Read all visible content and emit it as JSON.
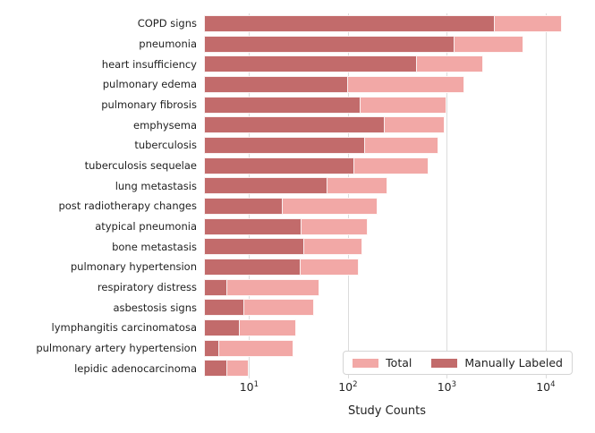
{
  "chart_data": {
    "type": "bar",
    "orientation": "horizontal",
    "xscale": "log",
    "xlabel": "Study Counts",
    "xlim": [
      3.5,
      17600
    ],
    "xticks": [
      10,
      100,
      1000,
      10000
    ],
    "grid": "vertical",
    "legend_position": "lower right",
    "categories": [
      "COPD signs",
      "pneumonia",
      "heart insufficiency",
      "pulmonary edema",
      "pulmonary fibrosis",
      "emphysema",
      "tuberculosis",
      "tuberculosis sequelae",
      "lung metastasis",
      "post radiotherapy changes",
      "atypical pneumonia",
      "bone metastasis",
      "pulmonary hypertension",
      "respiratory distress",
      "asbestosis signs",
      "lymphangitis carcinomatosa",
      "pulmonary artery hypertension",
      "lepidic adenocarcinoma"
    ],
    "series": [
      {
        "name": "Total",
        "color": "#f2a8a6",
        "values": [
          14600,
          5900,
          2320,
          1500,
          1000,
          950,
          830,
          650,
          250,
          200,
          160,
          140,
          130,
          52,
          45,
          30,
          28,
          10
        ]
      },
      {
        "name": "Manually Labeled",
        "color": "#c26b6b",
        "values": [
          3050,
          1190,
          500,
          100,
          135,
          235,
          150,
          115,
          62,
          22,
          34,
          36,
          33,
          6,
          9,
          8,
          5,
          6
        ]
      }
    ]
  },
  "colors": {
    "gridline": "#dcdcdc",
    "text": "#1f1f1f",
    "background": "#ffffff",
    "legend_border": "#d5d5d5"
  }
}
